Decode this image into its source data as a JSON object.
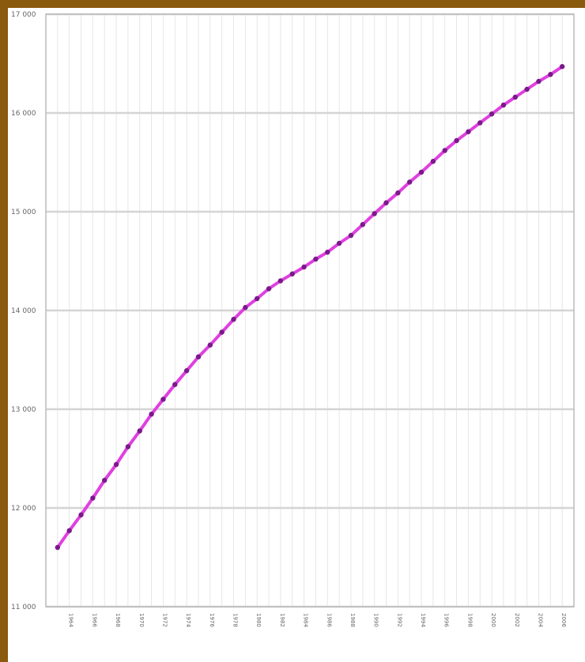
{
  "chart_data": {
    "type": "line",
    "title": "",
    "xlabel": "",
    "ylabel": "",
    "ylim": [
      11000,
      17000
    ],
    "y_ticks": [
      11000,
      12000,
      13000,
      14000,
      15000,
      16000,
      17000
    ],
    "y_tick_labels": [
      "11 000",
      "12 000",
      "13 000",
      "14 000",
      "15 000",
      "16 000",
      "17 000"
    ],
    "x_tick_labels": [
      "1964",
      "1966",
      "1968",
      "1970",
      "1972",
      "1974",
      "1976",
      "1978",
      "1980",
      "1982",
      "1984",
      "1986",
      "1988",
      "1990",
      "1992",
      "1994",
      "1996",
      "1998",
      "2000",
      "2002",
      "2004",
      "2006"
    ],
    "x": [
      1963,
      1964,
      1965,
      1966,
      1967,
      1968,
      1969,
      1970,
      1971,
      1972,
      1973,
      1974,
      1975,
      1976,
      1977,
      1978,
      1979,
      1980,
      1981,
      1982,
      1983,
      1984,
      1985,
      1986,
      1987,
      1988,
      1989,
      1990,
      1991,
      1992,
      1993,
      1994,
      1995,
      1996,
      1997,
      1998,
      1999,
      2000,
      2001,
      2002,
      2003,
      2004,
      2005,
      2006
    ],
    "series": [
      {
        "color": "#e040e0",
        "marker_color": "#7a1a8a",
        "values": [
          11600,
          11770,
          11930,
          12100,
          12280,
          12440,
          12620,
          12780,
          12950,
          13100,
          13250,
          13390,
          13530,
          13650,
          13780,
          13910,
          14030,
          14120,
          14220,
          14300,
          14370,
          14440,
          14520,
          14590,
          14680,
          14760,
          14870,
          14980,
          15090,
          15190,
          15300,
          15400,
          15510,
          15620,
          15720,
          15810,
          15900,
          15990,
          16080,
          16160,
          16240,
          16320,
          16390,
          16470
        ]
      }
    ],
    "grid": true,
    "legend": "none"
  }
}
